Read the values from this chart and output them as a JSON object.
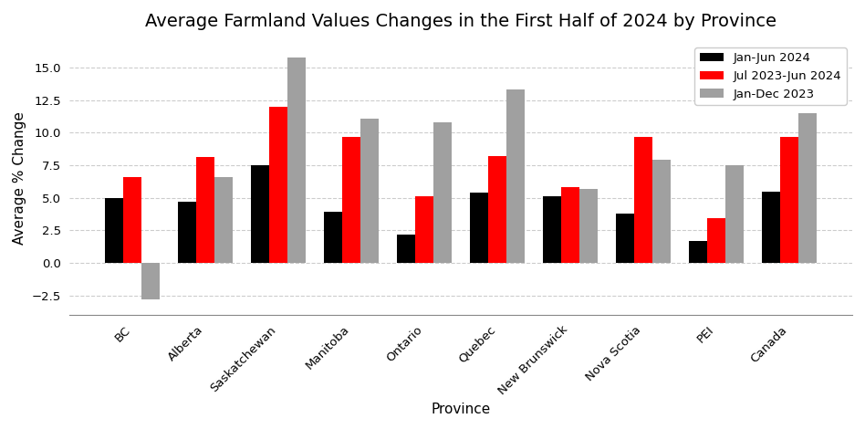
{
  "title": "Average Farmland Values Changes in the First Half of 2024 by Province",
  "xlabel": "Province",
  "ylabel": "Average % Change",
  "categories": [
    "BC",
    "Alberta",
    "Saskatchewan",
    "Manitoba",
    "Ontario",
    "Quebec",
    "New Brunswick",
    "Nova Scotia",
    "PEI",
    "Canada"
  ],
  "series": {
    "Jan-Jun 2024": {
      "values": [
        5.0,
        4.7,
        7.5,
        3.9,
        2.2,
        5.4,
        5.1,
        3.8,
        1.7,
        5.5
      ],
      "color": "#000000"
    },
    "Jul 2023-Jun 2024": {
      "values": [
        6.6,
        8.1,
        12.0,
        9.7,
        5.1,
        8.2,
        5.8,
        9.7,
        3.4,
        9.7
      ],
      "color": "#ff0000"
    },
    "Jan-Dec 2023": {
      "values": [
        -2.8,
        6.6,
        15.8,
        11.1,
        10.8,
        13.3,
        5.7,
        7.9,
        7.5,
        11.5
      ],
      "color": "#a0a0a0"
    }
  },
  "ylim": [
    -4,
    17
  ],
  "yticks": [
    -2.5,
    0.0,
    2.5,
    5.0,
    7.5,
    10.0,
    12.5,
    15.0
  ],
  "legend_loc": "upper right",
  "plot_bg_color": "#ffffff",
  "fig_bg_color": "#ffffff",
  "grid_color": "#cccccc",
  "grid_style": "--",
  "bar_width": 0.25
}
